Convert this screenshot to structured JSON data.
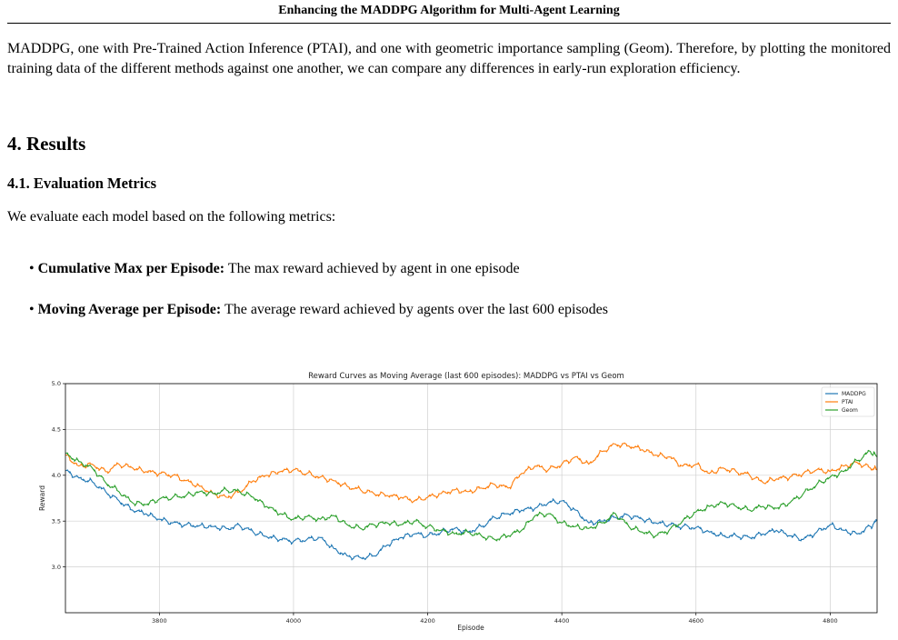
{
  "running_head": "Enhancing the MADDPG Algorithm for Multi-Agent Learning",
  "intro_paragraph": "MADDPG, one with Pre-Trained Action Inference (PTAI), and one with geometric importance sampling (Geom). Therefore, by plotting the monitored training data of the different methods against one another, we can compare any differences in early-run exploration efficiency.",
  "section": {
    "title": "4. Results"
  },
  "subsection": {
    "title": "4.1. Evaluation Metrics"
  },
  "metrics_intro": "We evaluate each model based on the following metrics:",
  "metrics": [
    {
      "term": "Cumulative Max per Episode:",
      "desc": "The max reward achieved by agent in one episode"
    },
    {
      "term": "Moving Average per Episode:",
      "desc": "The average reward achieved by agents over the last 600 episodes"
    }
  ],
  "chart_data": {
    "type": "line",
    "title": "Reward Curves as Moving Average (last 600 episodes): MADDPG vs PTAI vs Geom",
    "xlabel": "Episode",
    "ylabel": "Reward",
    "xlim": [
      3660,
      4870
    ],
    "ylim": [
      2.5,
      5.0
    ],
    "xticks": [
      3800,
      4000,
      4200,
      4400,
      4600,
      4800
    ],
    "yticks": [
      3.0,
      3.5,
      4.0,
      4.5,
      5.0
    ],
    "grid": true,
    "legend_position": "top-right",
    "series": [
      {
        "name": "MADDPG",
        "color": "#1f77b4",
        "x": [
          3660,
          3680,
          3700,
          3720,
          3740,
          3760,
          3780,
          3800,
          3820,
          3840,
          3860,
          3880,
          3900,
          3920,
          3940,
          3960,
          3980,
          4000,
          4020,
          4040,
          4060,
          4080,
          4100,
          4120,
          4140,
          4160,
          4180,
          4200,
          4220,
          4240,
          4260,
          4280,
          4300,
          4320,
          4340,
          4360,
          4380,
          4400,
          4420,
          4440,
          4460,
          4480,
          4500,
          4520,
          4540,
          4560,
          4580,
          4600,
          4620,
          4640,
          4660,
          4680,
          4700,
          4720,
          4740,
          4760,
          4780,
          4800,
          4820,
          4840,
          4860,
          4870
        ],
        "y": [
          4.05,
          3.97,
          3.93,
          3.82,
          3.72,
          3.62,
          3.58,
          3.52,
          3.48,
          3.46,
          3.45,
          3.44,
          3.42,
          3.45,
          3.38,
          3.33,
          3.3,
          3.28,
          3.3,
          3.32,
          3.2,
          3.12,
          3.1,
          3.12,
          3.24,
          3.32,
          3.36,
          3.34,
          3.38,
          3.42,
          3.38,
          3.44,
          3.54,
          3.58,
          3.62,
          3.64,
          3.7,
          3.72,
          3.62,
          3.48,
          3.5,
          3.54,
          3.56,
          3.52,
          3.48,
          3.46,
          3.44,
          3.43,
          3.38,
          3.34,
          3.34,
          3.32,
          3.36,
          3.4,
          3.34,
          3.3,
          3.38,
          3.46,
          3.4,
          3.36,
          3.44,
          3.5
        ]
      },
      {
        "name": "PTAI",
        "color": "#ff7f0e",
        "x": [
          3660,
          3680,
          3700,
          3720,
          3740,
          3760,
          3780,
          3800,
          3820,
          3840,
          3860,
          3880,
          3900,
          3920,
          3940,
          3960,
          3980,
          4000,
          4020,
          4040,
          4060,
          4080,
          4100,
          4120,
          4140,
          4160,
          4180,
          4200,
          4220,
          4240,
          4260,
          4280,
          4300,
          4320,
          4340,
          4360,
          4380,
          4400,
          4420,
          4440,
          4460,
          4480,
          4500,
          4520,
          4540,
          4560,
          4580,
          4600,
          4620,
          4640,
          4660,
          4680,
          4700,
          4720,
          4740,
          4760,
          4780,
          4800,
          4820,
          4840,
          4860,
          4870
        ],
        "y": [
          4.22,
          4.1,
          4.12,
          4.04,
          4.12,
          4.08,
          4.04,
          4.02,
          4.0,
          3.94,
          3.88,
          3.8,
          3.76,
          3.82,
          3.94,
          4.0,
          4.04,
          4.06,
          4.02,
          3.98,
          3.94,
          3.88,
          3.84,
          3.8,
          3.78,
          3.76,
          3.72,
          3.76,
          3.8,
          3.84,
          3.82,
          3.86,
          3.9,
          3.86,
          4.02,
          4.1,
          4.06,
          4.12,
          4.2,
          4.12,
          4.26,
          4.34,
          4.32,
          4.28,
          4.22,
          4.2,
          4.1,
          4.12,
          4.02,
          4.08,
          4.04,
          4.0,
          3.92,
          3.96,
          3.98,
          4.02,
          4.06,
          4.04,
          4.1,
          4.14,
          4.08,
          4.06
        ]
      },
      {
        "name": "Geom",
        "color": "#2ca02c",
        "x": [
          3660,
          3680,
          3700,
          3720,
          3740,
          3760,
          3780,
          3800,
          3820,
          3840,
          3860,
          3880,
          3900,
          3920,
          3940,
          3960,
          3980,
          4000,
          4020,
          4040,
          4060,
          4080,
          4100,
          4120,
          4140,
          4160,
          4180,
          4200,
          4220,
          4240,
          4260,
          4280,
          4300,
          4320,
          4340,
          4360,
          4380,
          4400,
          4420,
          4440,
          4460,
          4480,
          4500,
          4520,
          4540,
          4560,
          4580,
          4600,
          4620,
          4640,
          4660,
          4680,
          4700,
          4720,
          4740,
          4760,
          4780,
          4800,
          4820,
          4840,
          4860,
          4870
        ],
        "y": [
          4.24,
          4.15,
          4.08,
          3.92,
          3.82,
          3.7,
          3.68,
          3.74,
          3.76,
          3.78,
          3.82,
          3.8,
          3.84,
          3.82,
          3.76,
          3.66,
          3.58,
          3.52,
          3.55,
          3.52,
          3.56,
          3.46,
          3.42,
          3.46,
          3.48,
          3.46,
          3.5,
          3.44,
          3.4,
          3.36,
          3.38,
          3.34,
          3.3,
          3.34,
          3.4,
          3.56,
          3.58,
          3.48,
          3.44,
          3.42,
          3.48,
          3.58,
          3.44,
          3.38,
          3.34,
          3.4,
          3.5,
          3.6,
          3.66,
          3.7,
          3.66,
          3.62,
          3.66,
          3.64,
          3.7,
          3.8,
          3.9,
          3.98,
          4.04,
          4.16,
          4.26,
          4.2
        ]
      }
    ]
  }
}
